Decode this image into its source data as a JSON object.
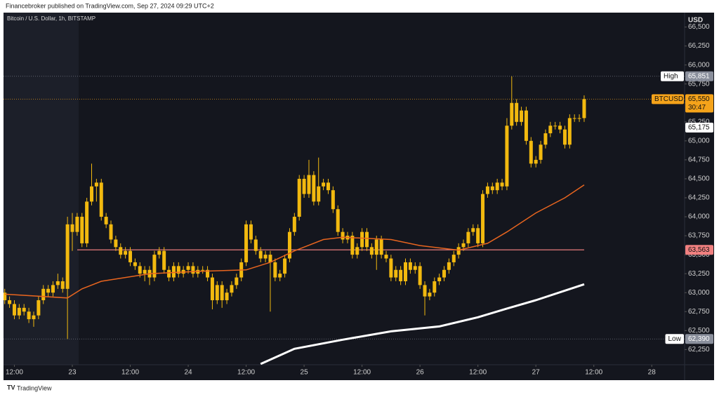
{
  "header": {
    "text": "Financebroker published on TradingView.com, Sep 27, 2024 09:29 UTC+2"
  },
  "footer": {
    "text": "TradingView"
  },
  "chart_data": {
    "type": "candlestick",
    "title": "Bitcoin / U.S. Dollar, 1h, BITSTAMP",
    "currency": "USD",
    "color": "#f2b90f",
    "grid": false,
    "x": [
      10,
      11,
      12,
      13,
      14,
      15,
      16,
      17,
      18,
      19,
      20,
      21,
      22,
      23,
      24,
      25,
      26,
      27,
      28,
      29,
      30,
      31,
      32,
      33,
      34,
      35,
      36,
      37,
      38,
      39,
      40,
      41,
      42,
      43,
      44,
      45,
      46,
      47,
      48,
      49,
      50,
      51,
      52,
      53,
      54,
      55,
      56,
      57,
      58,
      59,
      60,
      61,
      62,
      63,
      64,
      65,
      66,
      67,
      68,
      69,
      70,
      71,
      72,
      73,
      74,
      75,
      76,
      77,
      78,
      79,
      80,
      81,
      82,
      83,
      84,
      85,
      86,
      87,
      88,
      89,
      90,
      91,
      92,
      93,
      94,
      95,
      96,
      97,
      98,
      99,
      100,
      101,
      102,
      103,
      104,
      105,
      106,
      107,
      108,
      109,
      110,
      111,
      112,
      113,
      114,
      115,
      116,
      117,
      118,
      119,
      120,
      121,
      122,
      123,
      124,
      125,
      126,
      127,
      128,
      129,
      130
    ],
    "open": [
      63000,
      62900,
      62850,
      62700,
      62800,
      62750,
      62650,
      62700,
      62900,
      63050,
      63000,
      63100,
      63150,
      63050,
      63900,
      63800,
      64000,
      63650,
      64200,
      64400,
      64450,
      64000,
      63900,
      63700,
      63600,
      63500,
      63550,
      63400,
      63350,
      63250,
      63300,
      63200,
      63500,
      63550,
      63300,
      63200,
      63350,
      63250,
      63300,
      63350,
      63250,
      63300,
      63300,
      63200,
      62900,
      63100,
      62900,
      63000,
      63100,
      63200,
      63400,
      63900,
      63700,
      63550,
      63450,
      63500,
      63400,
      63200,
      63250,
      63450,
      63800,
      64000,
      64500,
      64300,
      64550,
      64200,
      64400,
      64450,
      64350,
      64100,
      63800,
      63700,
      63750,
      63500,
      63600,
      63800,
      63600,
      63500,
      63700,
      63500,
      63450,
      63200,
      63300,
      63150,
      63400,
      63300,
      63350,
      63100,
      62950,
      63000,
      63150,
      63200,
      63300,
      63400,
      63500,
      63600,
      63650,
      63800,
      63850,
      63650,
      64300,
      64400,
      64350,
      64450,
      64400,
      65200,
      65500,
      65250,
      65400,
      65000,
      64700,
      64750,
      64950,
      65100,
      65200,
      65200,
      65150,
      64950,
      65300,
      65300,
      65300
    ],
    "high": [
      63050,
      62950,
      62900,
      62850,
      62850,
      62800,
      62750,
      62950,
      63100,
      63100,
      63150,
      63250,
      63200,
      64000,
      64050,
      64050,
      64050,
      64250,
      64700,
      64500,
      64500,
      64050,
      63950,
      63750,
      63650,
      63600,
      63600,
      63450,
      63400,
      63350,
      63350,
      63550,
      63600,
      63600,
      63350,
      63400,
      63400,
      63350,
      63400,
      63400,
      63350,
      63350,
      63350,
      63250,
      63150,
      63150,
      63050,
      63150,
      63250,
      63450,
      63950,
      63950,
      63750,
      63600,
      63550,
      63550,
      63450,
      63300,
      63500,
      63850,
      64050,
      64550,
      64550,
      64750,
      64600,
      64780,
      64500,
      64500,
      64400,
      64150,
      63850,
      63800,
      63800,
      63650,
      63850,
      63850,
      63650,
      63750,
      63750,
      63550,
      63500,
      63350,
      63350,
      63450,
      63450,
      63400,
      63400,
      63150,
      63050,
      63200,
      63250,
      63350,
      63450,
      63550,
      63650,
      63700,
      63850,
      63900,
      63900,
      64350,
      64450,
      64450,
      64500,
      64500,
      65300,
      65851,
      65550,
      65450,
      65450,
      65050,
      64800,
      65000,
      65150,
      65250,
      65250,
      65250,
      65200,
      65350,
      65350,
      65350,
      65600
    ],
    "low": [
      62850,
      62800,
      62650,
      62650,
      62700,
      62600,
      62550,
      62650,
      62850,
      62950,
      62950,
      63050,
      63000,
      62390,
      63550,
      63750,
      63600,
      63600,
      64150,
      64200,
      63950,
      63850,
      63650,
      63550,
      63450,
      63450,
      63350,
      63300,
      63200,
      63150,
      63100,
      63150,
      63450,
      63250,
      63150,
      63150,
      63200,
      63200,
      63250,
      63200,
      63200,
      63250,
      63150,
      62780,
      62850,
      62800,
      62850,
      62950,
      63050,
      63150,
      63350,
      63650,
      63500,
      63400,
      63400,
      62750,
      63150,
      63150,
      63200,
      63400,
      63750,
      63950,
      64250,
      64250,
      64150,
      64150,
      64350,
      64300,
      64050,
      63750,
      63650,
      63650,
      63450,
      63450,
      63550,
      63550,
      63450,
      63300,
      63450,
      63400,
      63150,
      63150,
      63100,
      63100,
      63250,
      63250,
      63050,
      62700,
      62900,
      62950,
      63100,
      63150,
      63250,
      63350,
      63450,
      63550,
      63600,
      63750,
      63600,
      63600,
      64250,
      64300,
      64300,
      64350,
      64350,
      65150,
      65200,
      65200,
      64950,
      64650,
      64650,
      64700,
      64900,
      65050,
      65150,
      65100,
      64900,
      64900,
      65250,
      65250,
      65250
    ],
    "close": [
      62900,
      62850,
      62700,
      62800,
      62750,
      62650,
      62700,
      62900,
      63050,
      63000,
      63100,
      63150,
      63050,
      63900,
      63800,
      64000,
      63650,
      64200,
      64400,
      64450,
      64000,
      63900,
      63700,
      63600,
      63500,
      63550,
      63400,
      63350,
      63250,
      63300,
      63200,
      63500,
      63550,
      63300,
      63200,
      63350,
      63250,
      63300,
      63350,
      63250,
      63300,
      63300,
      63200,
      62900,
      63100,
      62900,
      63000,
      63100,
      63200,
      63400,
      63900,
      63700,
      63550,
      63450,
      63500,
      63400,
      63200,
      63250,
      63450,
      63800,
      64000,
      64500,
      64300,
      64550,
      64200,
      64400,
      64450,
      64350,
      64100,
      63800,
      63700,
      63750,
      63500,
      63600,
      63800,
      63600,
      63500,
      63700,
      63500,
      63450,
      63200,
      63300,
      63150,
      63400,
      63300,
      63350,
      63100,
      62950,
      63000,
      63150,
      63200,
      63300,
      63400,
      63500,
      63600,
      63650,
      63800,
      63850,
      63650,
      64300,
      64400,
      64350,
      64450,
      64400,
      65200,
      65500,
      65250,
      65400,
      65000,
      64700,
      64750,
      64950,
      65100,
      65200,
      65200,
      65150,
      64950,
      65300,
      65300,
      65300,
      65550
    ],
    "lines": [
      {
        "color": "#e8651f",
        "x": [
          10,
          23,
          26,
          30,
          40,
          50,
          60,
          65,
          70,
          76,
          80,
          90,
          96,
          104,
          110,
          114,
          120,
          126,
          130
        ],
        "values": [
          62980,
          62930,
          63050,
          63150,
          63250,
          63280,
          63300,
          63400,
          63550,
          63700,
          63730,
          63700,
          63620,
          63560,
          63650,
          63800,
          64050,
          64250,
          64420
        ]
      },
      {
        "color": "#ffffff",
        "x": [
          63,
          70,
          80,
          90,
          100,
          108,
          114,
          120,
          130
        ],
        "values": [
          62060,
          62260,
          62380,
          62490,
          62555,
          62676,
          62790,
          62900,
          63110
        ]
      }
    ],
    "price_labels": [
      {
        "tag": "High",
        "value": 65851,
        "label": "65,851",
        "color": "#8a8f9c"
      },
      {
        "tag": "BTCUSD",
        "value": 65550,
        "label": "65,550",
        "countdown": "30:47",
        "color": "#f5a31a"
      },
      {
        "value": 65175,
        "label": "65,175",
        "color": "#ffffff"
      },
      {
        "value": 63563,
        "label": "63,563",
        "color": "#f08080"
      },
      {
        "tag": "Low",
        "value": 62390,
        "label": "62,390",
        "color": "#8a8f9c"
      }
    ],
    "xlim": [
      9.75,
      150.8
    ],
    "xticks": [
      {
        "value": 12,
        "label": "12:00"
      },
      {
        "value": 24,
        "label": "23"
      },
      {
        "value": 36,
        "label": "12:00"
      },
      {
        "value": 48,
        "label": "24"
      },
      {
        "value": 60,
        "label": "12:00"
      },
      {
        "value": 72,
        "label": "25"
      },
      {
        "value": 84,
        "label": "12:00"
      },
      {
        "value": 96,
        "label": "26"
      },
      {
        "value": 108,
        "label": "12:00"
      },
      {
        "value": 120,
        "label": "27"
      },
      {
        "value": 132,
        "label": "12:00"
      },
      {
        "value": 144,
        "label": "28"
      }
    ],
    "ylim": [
      62050,
      66690
    ],
    "yticks": [
      {
        "value": 62250,
        "label": "62,250"
      },
      {
        "value": 62500,
        "label": "62,500"
      },
      {
        "value": 62750,
        "label": "62,750"
      },
      {
        "value": 63000,
        "label": "63,000"
      },
      {
        "value": 63250,
        "label": "63,250"
      },
      {
        "value": 63500,
        "label": "63,500"
      },
      {
        "value": 63750,
        "label": "63,750"
      },
      {
        "value": 64000,
        "label": "64,000"
      },
      {
        "value": 64250,
        "label": "64,250"
      },
      {
        "value": 64500,
        "label": "64,500"
      },
      {
        "value": 64750,
        "label": "64,750"
      },
      {
        "value": 65000,
        "label": "65,000"
      },
      {
        "value": 65250,
        "label": "65,250"
      },
      {
        "value": 65500,
        "label": "65,500"
      },
      {
        "value": 65750,
        "label": "65,750"
      },
      {
        "value": 66000,
        "label": "66,000"
      },
      {
        "value": 66250,
        "label": "66,250"
      },
      {
        "value": 66500,
        "label": "66,500"
      }
    ]
  }
}
